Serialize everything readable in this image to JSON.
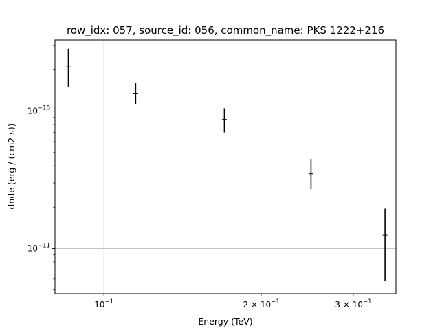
{
  "chart_data": {
    "type": "scatter",
    "title": "row_idx: 057, source_id: 056, common_name: PKS 1222+216",
    "xlabel": "Energy (TeV)",
    "ylabel": "dnde (erg / (cm2 s))",
    "xscale": "log",
    "yscale": "log",
    "xlim": [
      0.0806,
      0.362
    ],
    "ylim": [
      4.7e-12,
      3.3e-10
    ],
    "grid": true,
    "x_ticks": [
      {
        "value": 0.1,
        "base": "10",
        "exp": "−1",
        "major": true
      },
      {
        "value": 0.2,
        "base": "2 × 10",
        "exp": "−1",
        "major": false
      },
      {
        "value": 0.3,
        "base": "3 × 10",
        "exp": "−1",
        "major": false
      }
    ],
    "y_ticks": [
      {
        "value": 1e-11,
        "base": "10",
        "exp": "−11"
      },
      {
        "value": 1e-10,
        "base": "10",
        "exp": "−10"
      }
    ],
    "points": [
      {
        "x": 0.0855,
        "y": 2.1e-10,
        "ylo": 1.5e-10,
        "yhi": 2.85e-10
      },
      {
        "x": 0.115,
        "y": 1.35e-10,
        "ylo": 1.12e-10,
        "yhi": 1.6e-10
      },
      {
        "x": 0.17,
        "y": 8.7e-11,
        "ylo": 7e-11,
        "yhi": 1.05e-10
      },
      {
        "x": 0.249,
        "y": 3.5e-11,
        "ylo": 2.7e-11,
        "yhi": 4.5e-11
      },
      {
        "x": 0.345,
        "y": 1.25e-11,
        "ylo": 5.8e-12,
        "yhi": 1.95e-11
      }
    ]
  }
}
